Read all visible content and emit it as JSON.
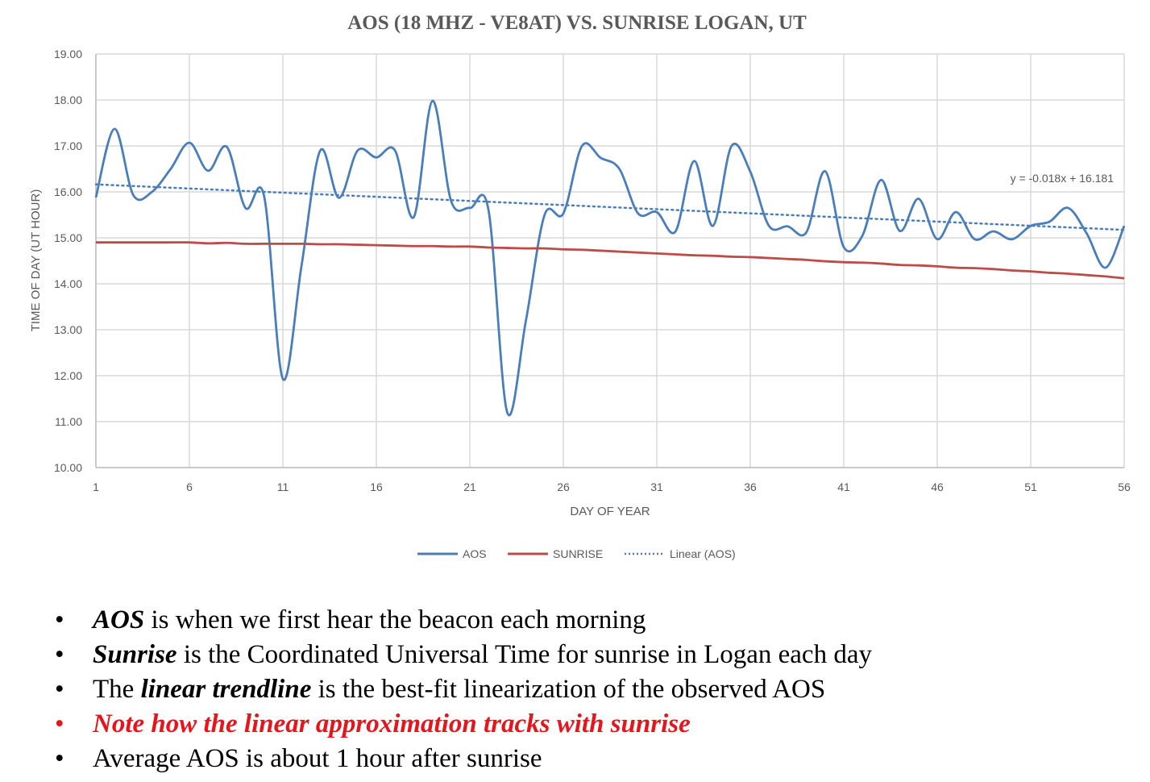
{
  "chart_data": {
    "type": "line",
    "title": "AOS (18 MHZ - VE8AT)  VS. SUNRISE LOGAN, UT",
    "xlabel": "DAY OF YEAR",
    "ylabel": "TIME OF DAY (UT HOUR)",
    "xlim": [
      1,
      56
    ],
    "ylim": [
      10,
      19
    ],
    "xticks": [
      "1",
      "6",
      "11",
      "16",
      "21",
      "26",
      "31",
      "36",
      "41",
      "46",
      "51",
      "56"
    ],
    "yticks": [
      "10.00",
      "11.00",
      "12.00",
      "13.00",
      "14.00",
      "15.00",
      "16.00",
      "17.00",
      "18.00",
      "19.00"
    ],
    "grid": true,
    "legend_position": "bottom",
    "x": [
      1,
      2,
      3,
      4,
      5,
      6,
      7,
      8,
      9,
      10,
      11,
      12,
      13,
      14,
      15,
      16,
      17,
      18,
      19,
      20,
      21,
      22,
      23,
      24,
      25,
      26,
      27,
      28,
      29,
      30,
      31,
      32,
      33,
      34,
      35,
      36,
      37,
      38,
      39,
      40,
      41,
      42,
      43,
      44,
      45,
      46,
      47,
      48,
      49,
      50,
      51,
      52,
      53,
      54,
      55,
      56
    ],
    "series": [
      {
        "name": "AOS",
        "color": "#4a7ebb",
        "values": [
          15.88,
          17.37,
          15.93,
          16.0,
          16.5,
          17.07,
          16.46,
          16.98,
          15.65,
          15.9,
          11.93,
          14.4,
          16.9,
          15.87,
          16.9,
          16.75,
          16.9,
          15.45,
          17.98,
          15.8,
          15.65,
          15.6,
          11.2,
          13.2,
          15.5,
          15.53,
          17.0,
          16.74,
          16.5,
          15.53,
          15.56,
          15.14,
          16.67,
          15.26,
          17.0,
          16.44,
          15.26,
          15.25,
          15.12,
          16.45,
          14.8,
          15.05,
          16.26,
          15.15,
          15.85,
          14.97,
          15.56,
          14.97,
          15.14,
          14.97,
          15.26,
          15.35,
          15.65,
          15.09,
          14.35,
          15.26
        ]
      },
      {
        "name": "SUNRISE",
        "color": "#be4b48",
        "values": [
          14.9,
          14.9,
          14.9,
          14.9,
          14.9,
          14.9,
          14.88,
          14.89,
          14.87,
          14.87,
          14.87,
          14.87,
          14.86,
          14.86,
          14.85,
          14.84,
          14.83,
          14.82,
          14.82,
          14.81,
          14.81,
          14.79,
          14.78,
          14.77,
          14.77,
          14.75,
          14.74,
          14.72,
          14.7,
          14.68,
          14.66,
          14.64,
          14.62,
          14.61,
          14.59,
          14.58,
          14.56,
          14.54,
          14.52,
          14.49,
          14.47,
          14.46,
          14.44,
          14.41,
          14.4,
          14.38,
          14.35,
          14.34,
          14.32,
          14.29,
          14.27,
          14.24,
          14.22,
          14.19,
          14.16,
          14.12
        ]
      },
      {
        "name": "Linear (AOS)",
        "color": "#4a7ebb",
        "style": "dotted",
        "slope": -0.018,
        "intercept": 16.181
      }
    ],
    "annotations": [
      "y = -0.018x + 16.181"
    ]
  },
  "notes": [
    {
      "bold": "AOS",
      "rest": " is when we first hear the beacon each morning"
    },
    {
      "bold": "Sunrise",
      "rest": " is the Coordinated Universal Time for sunrise in Logan each day"
    },
    {
      "pre": "The ",
      "bold": "linear trendline",
      "rest": " is the best-fit linearization of the observed AOS"
    },
    {
      "text": "Note how the linear approximation tracks with sunrise"
    },
    {
      "text": "Average AOS is about 1 hour after sunrise"
    }
  ],
  "bullet": "•"
}
